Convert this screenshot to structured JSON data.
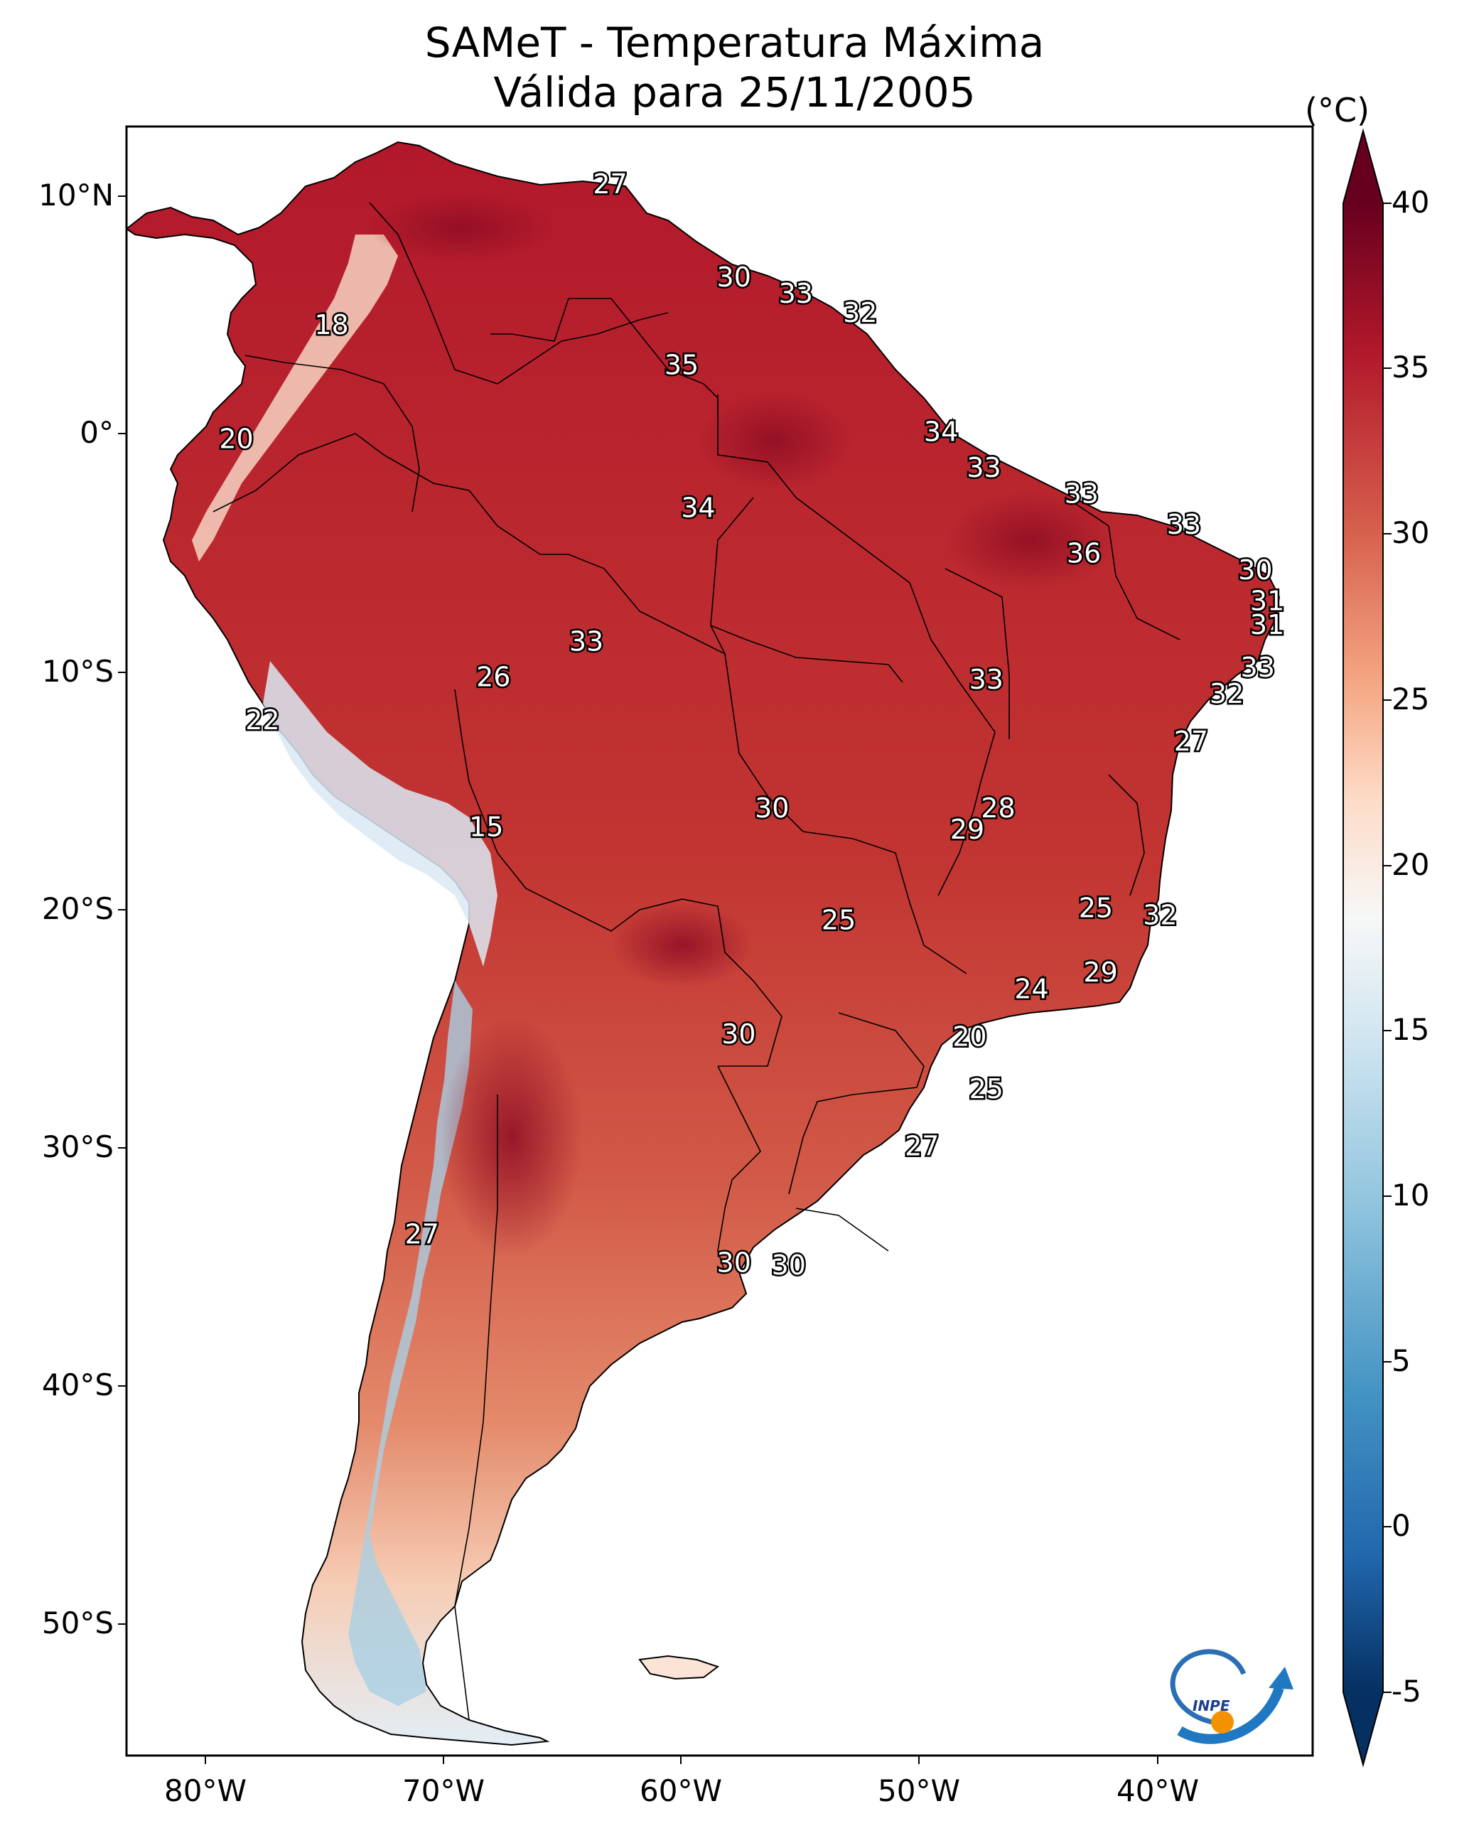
{
  "title": {
    "line1": "SAMeT - Temperatura Máxima",
    "line2": "Válida para 25/11/2005"
  },
  "axes": {
    "lat_ticks": [
      "10°N",
      "0°",
      "10°S",
      "20°S",
      "30°S",
      "40°S",
      "50°S"
    ],
    "lon_ticks": [
      "80°W",
      "70°W",
      "60°W",
      "50°W",
      "40°W"
    ]
  },
  "colorbar": {
    "unit": "(°C)",
    "ticks": [
      "40",
      "35",
      "30",
      "25",
      "20",
      "15",
      "10",
      "5",
      "0",
      "-5"
    ],
    "range": [
      -7,
      41
    ],
    "colors": {
      "max": "#67001f",
      "high": "#b2182b",
      "warm": "#d6604d",
      "mild": "#f4a582",
      "light": "#fddbc7",
      "neutral": "#f7f7f7",
      "cool": "#d1e5f0",
      "cold": "#92c5de",
      "colder": "#4393c3",
      "coldest": "#2166ac",
      "min": "#053061"
    }
  },
  "map_data": {
    "variable": "Temperatura Máxima",
    "date": "25/11/2005",
    "contour_labels": [
      {
        "value": "27",
        "lon": -63.0,
        "lat": 10.4
      },
      {
        "value": "18",
        "lon": -74.7,
        "lat": 4.5
      },
      {
        "value": "30",
        "lon": -57.8,
        "lat": 6.5
      },
      {
        "value": "33",
        "lon": -55.2,
        "lat": 5.8
      },
      {
        "value": "32",
        "lon": -52.5,
        "lat": 5.0
      },
      {
        "value": "35",
        "lon": -60.0,
        "lat": 2.8
      },
      {
        "value": "20",
        "lon": -78.7,
        "lat": -0.3
      },
      {
        "value": "34",
        "lon": -49.1,
        "lat": 0.0
      },
      {
        "value": "33",
        "lon": -47.3,
        "lat": -1.5
      },
      {
        "value": "34",
        "lon": -59.3,
        "lat": -3.2
      },
      {
        "value": "33",
        "lon": -43.2,
        "lat": -2.6
      },
      {
        "value": "33",
        "lon": -38.9,
        "lat": -3.9
      },
      {
        "value": "36",
        "lon": -43.1,
        "lat": -5.1
      },
      {
        "value": "30",
        "lon": -35.9,
        "lat": -5.8
      },
      {
        "value": "31",
        "lon": -35.4,
        "lat": -7.1
      },
      {
        "value": "31",
        "lon": -35.4,
        "lat": -8.1
      },
      {
        "value": "33",
        "lon": -64.0,
        "lat": -8.8
      },
      {
        "value": "26",
        "lon": -67.9,
        "lat": -10.3
      },
      {
        "value": "33",
        "lon": -47.2,
        "lat": -10.4
      },
      {
        "value": "33",
        "lon": -35.8,
        "lat": -9.9
      },
      {
        "value": "32",
        "lon": -37.1,
        "lat": -11.0
      },
      {
        "value": "22",
        "lon": -77.6,
        "lat": -12.1
      },
      {
        "value": "27",
        "lon": -38.6,
        "lat": -13.0
      },
      {
        "value": "28",
        "lon": -46.7,
        "lat": -15.8
      },
      {
        "value": "30",
        "lon": -56.2,
        "lat": -15.8
      },
      {
        "value": "29",
        "lon": -48.0,
        "lat": -16.7
      },
      {
        "value": "15",
        "lon": -68.2,
        "lat": -16.6
      },
      {
        "value": "25",
        "lon": -42.6,
        "lat": -20.0
      },
      {
        "value": "32",
        "lon": -39.9,
        "lat": -20.3
      },
      {
        "value": "25",
        "lon": -53.4,
        "lat": -20.5
      },
      {
        "value": "29",
        "lon": -42.4,
        "lat": -22.7
      },
      {
        "value": "24",
        "lon": -45.3,
        "lat": -23.4
      },
      {
        "value": "20",
        "lon": -47.9,
        "lat": -25.4
      },
      {
        "value": "30",
        "lon": -57.6,
        "lat": -25.3
      },
      {
        "value": "25",
        "lon": -47.2,
        "lat": -27.6
      },
      {
        "value": "27",
        "lon": -49.9,
        "lat": -30.0
      },
      {
        "value": "27",
        "lon": -70.9,
        "lat": -33.7
      },
      {
        "value": "30",
        "lon": -57.8,
        "lat": -34.9
      },
      {
        "value": "30",
        "lon": -55.5,
        "lat": -35.0
      }
    ]
  }
}
